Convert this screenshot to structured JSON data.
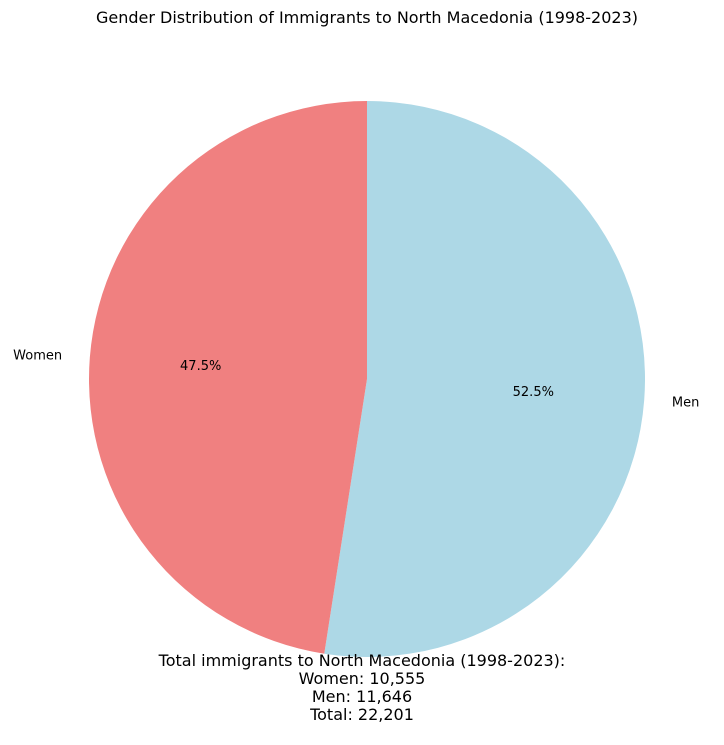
{
  "chart_data": {
    "type": "pie",
    "title": "Gender Distribution of Immigrants to North Macedonia (1998-2023)",
    "slices": [
      {
        "label": "Men",
        "value": 11646,
        "pct_label": "52.5%",
        "color": "#add8e6"
      },
      {
        "label": "Women",
        "value": 10555,
        "pct_label": "47.5%",
        "color": "#f08080"
      }
    ],
    "start_angle_deg": 90,
    "direction": "clockwise"
  },
  "summary": {
    "line1": "Total immigrants to North Macedonia (1998-2023):",
    "line2": "Women: 10,555",
    "line3": "Men: 11,646",
    "line4": "Total: 22,201"
  }
}
